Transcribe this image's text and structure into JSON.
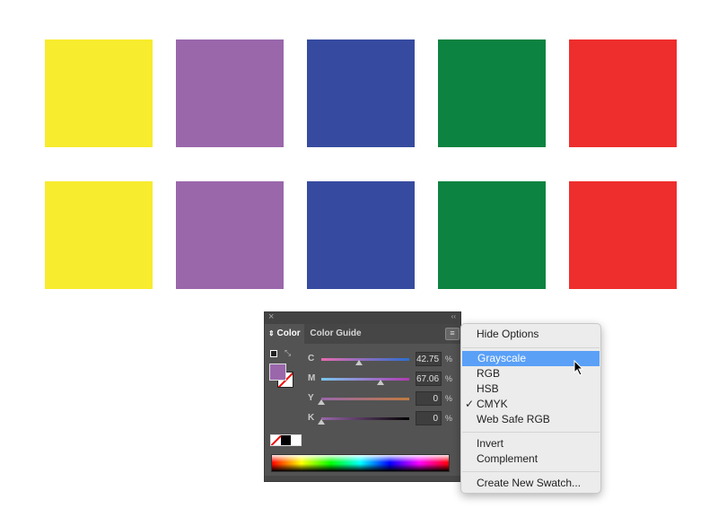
{
  "swatch_colors": [
    "#f7ec2e",
    "#9a67ab",
    "#364ba0",
    "#0c8340",
    "#ee2e2d"
  ],
  "panel": {
    "close": "×",
    "collapse": "‹‹",
    "tabs": [
      {
        "label": "Color"
      },
      {
        "label": "Color Guide"
      }
    ],
    "fill_color": "#9a67ab",
    "sliders": [
      {
        "label": "C",
        "value": "42.75",
        "pct": 42.75,
        "unit": "%"
      },
      {
        "label": "M",
        "value": "67.06",
        "pct": 67.06,
        "unit": "%"
      },
      {
        "label": "Y",
        "value": "0",
        "pct": 0,
        "unit": "%"
      },
      {
        "label": "K",
        "value": "0",
        "pct": 0,
        "unit": "%"
      }
    ]
  },
  "menu": {
    "items": [
      {
        "label": "Hide Options"
      },
      {
        "label": "Grayscale",
        "highlighted": true
      },
      {
        "label": "RGB"
      },
      {
        "label": "HSB"
      },
      {
        "label": "CMYK",
        "checked": true,
        "check": "✓"
      },
      {
        "label": "Web Safe RGB"
      },
      {
        "label": "Invert"
      },
      {
        "label": "Complement"
      },
      {
        "label": "Create New Swatch..."
      }
    ]
  }
}
